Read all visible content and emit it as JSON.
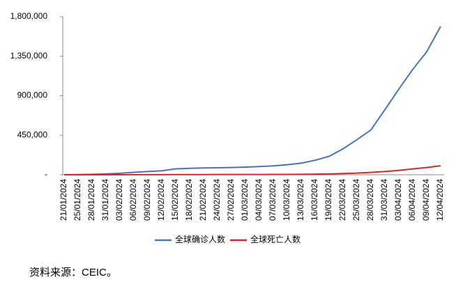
{
  "chart_data": {
    "type": "line",
    "categories": [
      "21/01/2024",
      "25/01/2024",
      "28/01/2024",
      "31/01/2024",
      "03/02/2024",
      "06/02/2024",
      "09/02/2024",
      "12/02/2024",
      "15/02/2024",
      "18/02/2024",
      "21/02/2024",
      "24/02/2024",
      "27/02/2024",
      "01/03/2024",
      "04/03/2024",
      "07/03/2024",
      "10/03/2024",
      "13/03/2024",
      "16/03/2024",
      "19/03/2024",
      "22/03/2024",
      "25/03/2024",
      "28/03/2024",
      "31/03/2024",
      "03/04/2024",
      "06/04/2024",
      "09/04/2024",
      "12/04/2024"
    ],
    "series": [
      {
        "name": "全球确诊人数",
        "color": "#4472c4",
        "values": [
          1000,
          2000,
          5000,
          10000,
          17000,
          28000,
          37000,
          45000,
          67000,
          73000,
          77000,
          79000,
          82000,
          87000,
          93000,
          101000,
          114000,
          132000,
          165000,
          210000,
          295000,
          400000,
          510000,
          740000,
          975000,
          1200000,
          1400000,
          1690000
        ]
      },
      {
        "name": "全球死亡人数",
        "color": "#d62728",
        "values": [
          20,
          50,
          130,
          250,
          400,
          600,
          900,
          1100,
          1500,
          1900,
          2200,
          2500,
          2800,
          3000,
          3300,
          3600,
          4200,
          5400,
          7000,
          9000,
          14000,
          19000,
          27000,
          37000,
          50000,
          66000,
          82000,
          102000
        ]
      }
    ],
    "ylim": [
      0,
      1800000
    ],
    "yticks": [
      {
        "value": 0,
        "label": "-"
      },
      {
        "value": 450000,
        "label": "450,000"
      },
      {
        "value": 900000,
        "label": "900,000"
      },
      {
        "value": 1350000,
        "label": "1,350,000"
      },
      {
        "value": 1800000,
        "label": "1,800,000"
      }
    ],
    "note": "资料来源：CEIC。"
  }
}
